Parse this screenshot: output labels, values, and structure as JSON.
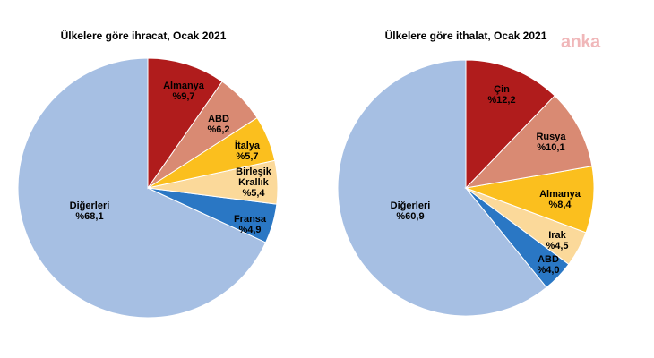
{
  "watermark": "anka",
  "chart_data": [
    {
      "type": "pie",
      "title": "Ülkelere göre ihracat, Ocak 2021",
      "slices": [
        {
          "label_lines": [
            "Almanya"
          ],
          "value_text": "%9,7",
          "value": 9.7,
          "color": "#b01c1c"
        },
        {
          "label_lines": [
            "ABD"
          ],
          "value_text": "%6,2",
          "value": 6.2,
          "color": "#d98a73"
        },
        {
          "label_lines": [
            "İtalya"
          ],
          "value_text": "%5,7",
          "value": 5.7,
          "color": "#fbbf1e"
        },
        {
          "label_lines": [
            "Birleşik",
            "Krallık"
          ],
          "value_text": "%5,4",
          "value": 5.4,
          "color": "#fbd99a"
        },
        {
          "label_lines": [
            "Fransa"
          ],
          "value_text": "%4,9",
          "value": 4.9,
          "color": "#2a77c4"
        },
        {
          "label_lines": [
            "Diğerleri"
          ],
          "value_text": "%68,1",
          "value": 68.1,
          "color": "#a6bfe3"
        }
      ]
    },
    {
      "type": "pie",
      "title": "Ülkelere göre ithalat, Ocak 2021",
      "slices": [
        {
          "label_lines": [
            "Çin"
          ],
          "value_text": "%12,2",
          "value": 12.2,
          "color": "#b01c1c"
        },
        {
          "label_lines": [
            "Rusya"
          ],
          "value_text": "%10,1",
          "value": 10.1,
          "color": "#d98a73"
        },
        {
          "label_lines": [
            "Almanya"
          ],
          "value_text": "%8,4",
          "value": 8.4,
          "color": "#fbbf1e"
        },
        {
          "label_lines": [
            "Irak"
          ],
          "value_text": "%4,5",
          "value": 4.5,
          "color": "#fbd99a"
        },
        {
          "label_lines": [
            "ABD"
          ],
          "value_text": "%4,0",
          "value": 4.0,
          "color": "#2a77c4"
        },
        {
          "label_lines": [
            "Diğerleri"
          ],
          "value_text": "%60,9",
          "value": 60.9,
          "color": "#a6bfe3"
        }
      ]
    }
  ]
}
